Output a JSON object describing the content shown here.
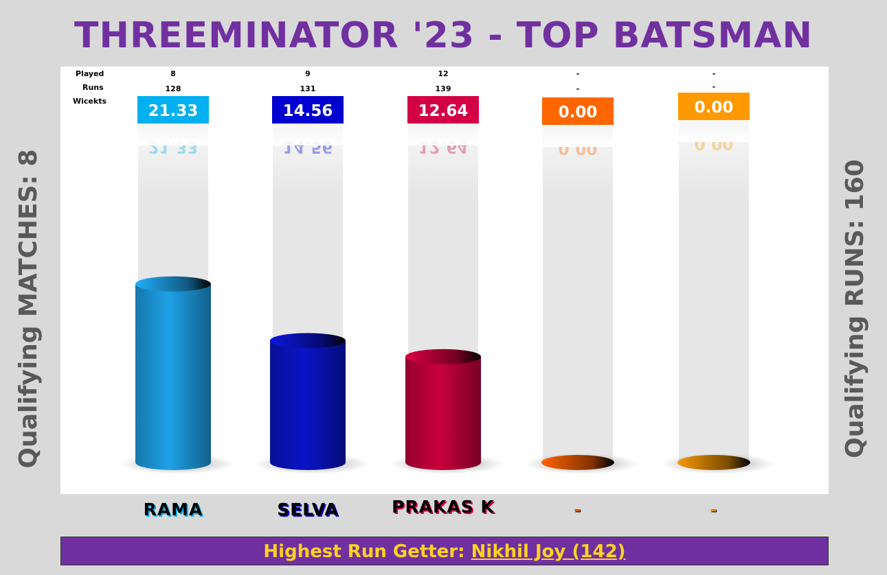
{
  "title": "THREEMINATOR '23 - TOP BATSMAN",
  "left_caption": "Qualifying MATCHES: 8",
  "right_caption": "Qualifying RUNS: 160",
  "row_labels": {
    "played": "Played",
    "runs": "Runs",
    "wickets": "Wicekts"
  },
  "footer": {
    "prefix": "Highest Run Getter: ",
    "name": "Nikhil Joy (142)"
  },
  "chart_data": {
    "type": "bar",
    "title": "THREEMINATOR '23 - TOP BATSMAN",
    "categories": [
      "RAMA",
      "SELVA",
      "PRAKAS K",
      "-",
      "-"
    ],
    "values": [
      21.33,
      14.56,
      12.64,
      0.0,
      0.0
    ],
    "value_labels": [
      "21.33",
      "14.56",
      "12.64",
      "0.00",
      "0.00"
    ],
    "played": [
      "8",
      "9",
      "12",
      "-",
      "-"
    ],
    "runs": [
      "128",
      "131",
      "139",
      "-",
      "-"
    ],
    "ylim": [
      0,
      40
    ],
    "grid": false,
    "colors": [
      "#1ea0e6",
      "#0a14c8",
      "#c8003c",
      "#e85a00",
      "#e08a00"
    ],
    "badge_colors": [
      "#00b0f0",
      "#0000d0",
      "#d40045",
      "#ff6600",
      "#ff9900"
    ]
  }
}
